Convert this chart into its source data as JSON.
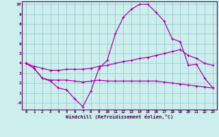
{
  "xlabel": "Windchill (Refroidissement éolien,°C)",
  "x": [
    0,
    1,
    2,
    3,
    4,
    5,
    6,
    7,
    8,
    9,
    10,
    11,
    12,
    13,
    14,
    15,
    16,
    17,
    18,
    19,
    20,
    21,
    22,
    23
  ],
  "line1": [
    4.0,
    3.5,
    2.5,
    2.2,
    1.5,
    1.3,
    0.4,
    -0.4,
    1.2,
    3.5,
    4.3,
    7.0,
    8.7,
    9.5,
    10.0,
    10.0,
    9.2,
    8.3,
    6.5,
    6.2,
    3.8,
    3.9,
    2.5,
    1.5
  ],
  "line2": [
    4.0,
    3.5,
    2.5,
    2.3,
    2.3,
    2.3,
    2.2,
    2.1,
    2.2,
    2.3,
    2.2,
    2.2,
    2.2,
    2.2,
    2.2,
    2.2,
    2.2,
    2.1,
    2.0,
    1.9,
    1.8,
    1.7,
    1.6,
    1.5
  ],
  "line3": [
    4.0,
    3.7,
    3.5,
    3.3,
    3.3,
    3.4,
    3.4,
    3.4,
    3.5,
    3.7,
    3.8,
    4.0,
    4.2,
    4.3,
    4.5,
    4.6,
    4.8,
    5.0,
    5.2,
    5.4,
    4.8,
    4.5,
    4.0,
    3.8
  ],
  "color": "#aa00aa",
  "bg_color": "#cceeed",
  "grid_color": "#99cccc",
  "spine_color": "#660066",
  "tick_color": "#440044",
  "ylim": [
    -0.7,
    10.3
  ],
  "xlim": [
    -0.5,
    23.5
  ],
  "ytick_labels": [
    "-0",
    "1",
    "2",
    "3",
    "4",
    "5",
    "6",
    "7",
    "8",
    "9",
    "10"
  ],
  "ytick_vals": [
    0,
    1,
    2,
    3,
    4,
    5,
    6,
    7,
    8,
    9,
    10
  ],
  "xtick_vals": [
    0,
    1,
    2,
    3,
    4,
    5,
    6,
    7,
    8,
    9,
    10,
    11,
    12,
    13,
    14,
    15,
    16,
    17,
    18,
    19,
    20,
    21,
    22,
    23
  ],
  "marker": "+"
}
